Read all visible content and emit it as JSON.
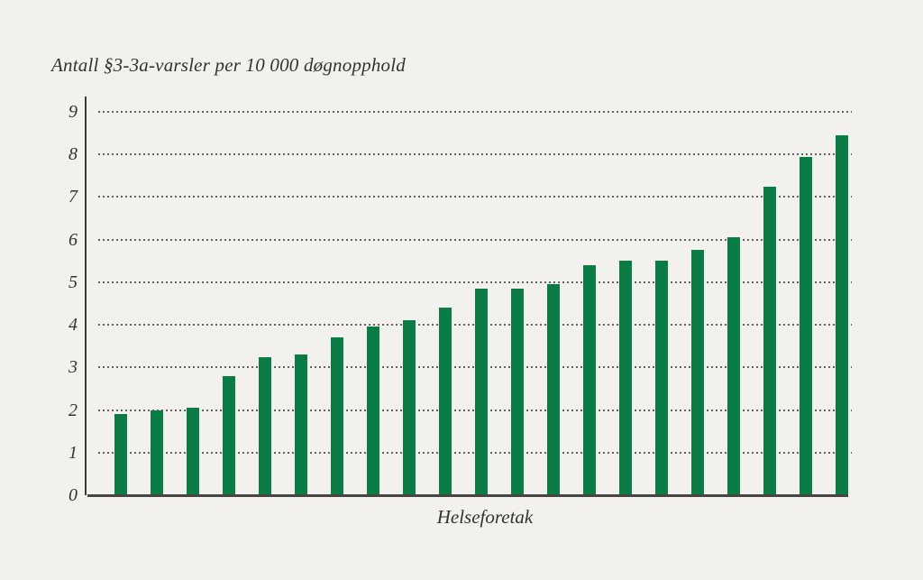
{
  "chart_data": {
    "type": "bar",
    "title": "Antall §3-3a-varsler per 10 000 døgnopphold",
    "xlabel": "Helseforetak",
    "ylabel": "",
    "bar_count": 21,
    "values": [
      1.9,
      2.0,
      2.05,
      2.8,
      3.25,
      3.3,
      3.7,
      3.95,
      4.1,
      4.4,
      4.85,
      4.85,
      4.95,
      5.4,
      5.5,
      5.5,
      5.75,
      6.05,
      7.25,
      7.95,
      8.45
    ],
    "ylim": [
      0,
      9
    ],
    "yticks": [
      0,
      1,
      2,
      3,
      4,
      5,
      6,
      7,
      8,
      9
    ],
    "grid": "horizontal-dotted",
    "legend_position": "none",
    "colors": {
      "bar": "#0c7c45",
      "background": "#f2f1ed",
      "axis": "#3b3b38",
      "gridline": "#63635e",
      "text": "#32322e"
    }
  }
}
